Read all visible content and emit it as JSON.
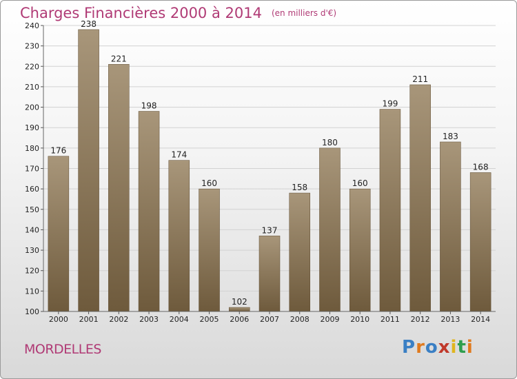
{
  "header": {
    "title": "Charges Financières 2000 à 2014",
    "unit": "(en milliers d'€)"
  },
  "footer": {
    "city": "MORDELLES",
    "logo": "Proxiti",
    "logo_colors": [
      "#3a7fc4",
      "#e07a1e",
      "#3a7fc4",
      "#c0392b",
      "#e0b51e",
      "#2e9e4e",
      "#e07a1e"
    ]
  },
  "chart_data": {
    "type": "bar",
    "title": "Charges Financières 2000 à 2014",
    "subtitle": "(en milliers d'€)",
    "xlabel": "",
    "ylabel": "",
    "categories": [
      "2000",
      "2001",
      "2002",
      "2003",
      "2004",
      "2005",
      "2006",
      "2007",
      "2008",
      "2009",
      "2010",
      "2011",
      "2012",
      "2013",
      "2014"
    ],
    "values": [
      176,
      238,
      221,
      198,
      174,
      160,
      102,
      137,
      158,
      180,
      160,
      199,
      211,
      183,
      168
    ],
    "ylim": [
      100,
      240
    ],
    "yticks": [
      100,
      110,
      120,
      130,
      140,
      150,
      160,
      170,
      180,
      190,
      200,
      210,
      220,
      230,
      240
    ],
    "grid": true,
    "bar_color_top": "#a8967a",
    "bar_color_bottom": "#6e5a3c"
  }
}
